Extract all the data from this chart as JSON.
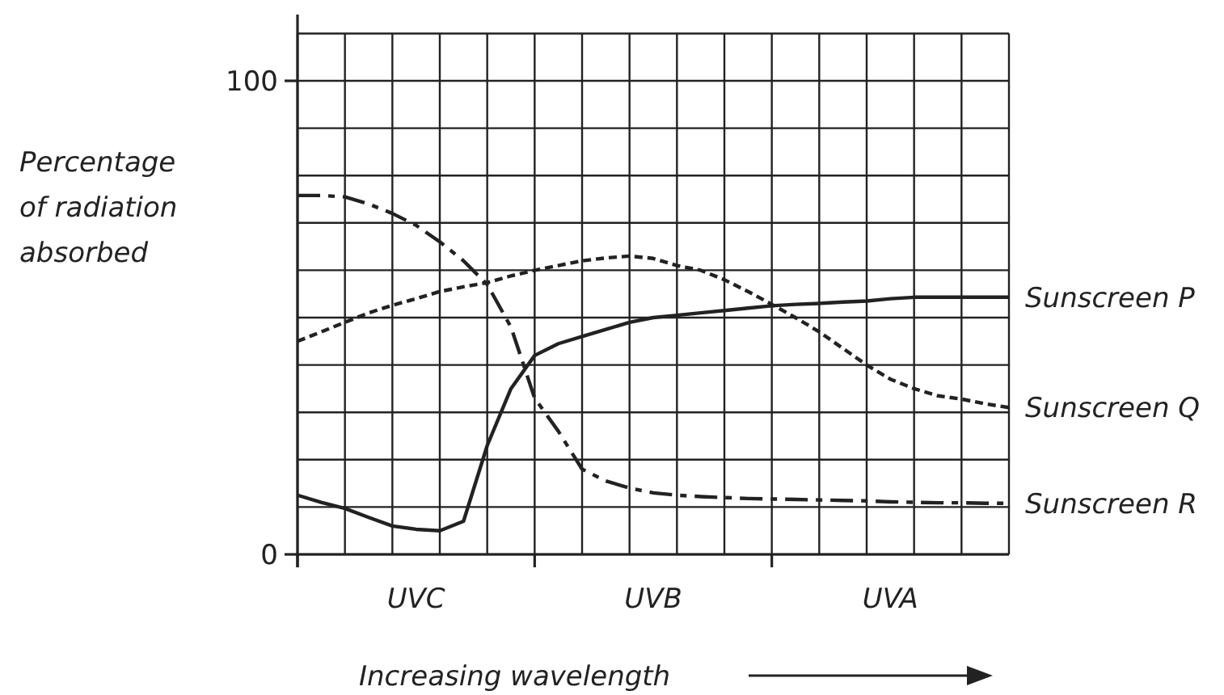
{
  "chart_data": {
    "type": "line",
    "xlabel": "Increasing wavelength",
    "ylabel": "Percentage of radiation absorbed",
    "categories": [
      null,
      null,
      null,
      null,
      null,
      null,
      null,
      null,
      null,
      null,
      null,
      null,
      null,
      null,
      null,
      null,
      null,
      null,
      null,
      null,
      null,
      null,
      null,
      null,
      null,
      null,
      null,
      null,
      null,
      null,
      null
    ],
    "ylim": [
      0,
      114
    ],
    "yticks": [
      0,
      {
        "value": 10,
        "label": null
      },
      {
        "value": 20,
        "label": null
      },
      {
        "value": 30,
        "label": null
      },
      {
        "value": 40,
        "label": null
      },
      {
        "value": 50,
        "label": null
      },
      {
        "value": 60,
        "label": null
      },
      {
        "value": 70,
        "label": null
      },
      {
        "value": 80,
        "label": null
      },
      {
        "value": 90,
        "label": null
      },
      100,
      {
        "value": 110,
        "label": null
      }
    ],
    "grid": true,
    "marker": "none",
    "annotations": [
      "UVC",
      "UVB",
      "UVA"
    ],
    "series": [
      {
        "name": "Sunscreen P",
        "color": "#222222",
        "line_style": "solid",
        "values": [
          12.5,
          11,
          9.7,
          7.8,
          6,
          5.3,
          5,
          7,
          23,
          35,
          42,
          44.5,
          46,
          47.5,
          49,
          50,
          50.5,
          51,
          51.5,
          52,
          52.5,
          52.8,
          53,
          53.3,
          53.5,
          54,
          54.3,
          54.3,
          54.3,
          54.3,
          54.3
        ]
      },
      {
        "name": "Sunscreen Q",
        "color": "#222222",
        "line_style": "dashed",
        "values": [
          45,
          47,
          49,
          51,
          52.6,
          54,
          55.5,
          56.5,
          57.4,
          58.8,
          60,
          61,
          62,
          62.6,
          63,
          62.5,
          61,
          60,
          58,
          55.5,
          52.8,
          50,
          47,
          43.5,
          40,
          37,
          35,
          33.5,
          32.8,
          31.8,
          31
        ]
      },
      {
        "name": "Sunscreen R",
        "color": "#222222",
        "line_style": "dashdot",
        "values": [
          75.8,
          75.8,
          75.5,
          74,
          72,
          69.5,
          66,
          62,
          57,
          48,
          33,
          26,
          18,
          15.5,
          14,
          13,
          12.5,
          12.2,
          12,
          11.8,
          11.7,
          11.6,
          11.5,
          11.4,
          11.3,
          11.1,
          11,
          10.9,
          10.9,
          10.8,
          10.8
        ]
      }
    ]
  }
}
